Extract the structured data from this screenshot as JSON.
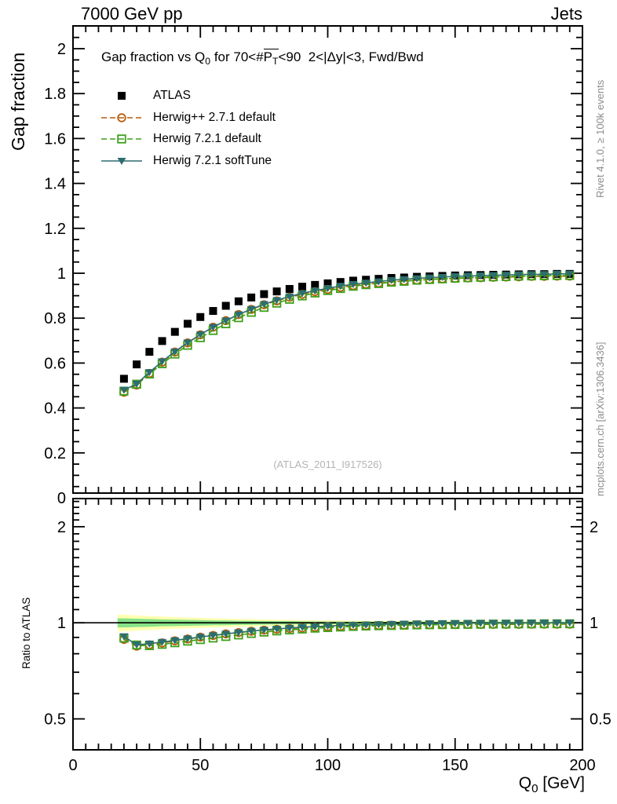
{
  "header": {
    "left": "7000 GeV pp",
    "right": "Jets"
  },
  "side_notes": {
    "top": "Rivet 4.1.0, ≥ 100k events",
    "bottom": "mcplots.cern.ch [arXiv:1306.3436]"
  },
  "watermark": "(ATLAS_2011_I917526)",
  "main_panel": {
    "ylabel": "Gap fraction",
    "title_segments": [
      {
        "t": "Gap fraction vs Q"
      },
      {
        "t": "0",
        "sub": true
      },
      {
        "t": " for 70<#"
      },
      {
        "t": "P",
        "bar": true,
        "sub_t": "T"
      },
      {
        "t": "<90  2<|Δy|<3, Fwd/Bwd"
      }
    ],
    "legend": [
      {
        "label": "ATLAS",
        "marker": "square-filled",
        "color": "#000000",
        "line": "none"
      },
      {
        "label": "Herwig++ 2.7.1 default",
        "marker": "circle-open",
        "color": "#b85c0a",
        "line": "dashed"
      },
      {
        "label": "Herwig 7.2.1 default",
        "marker": "square-open",
        "color": "#3da018",
        "line": "dashed"
      },
      {
        "label": "Herwig 7.2.1 softTune",
        "marker": "triangle-down-filled",
        "color": "#2d6d72",
        "line": "solid"
      }
    ]
  },
  "ratio_panel": {
    "ylabel": "Ratio to ATLAS"
  },
  "xaxis": {
    "label_segments": [
      {
        "t": "Q"
      },
      {
        "t": "0",
        "sub": true
      },
      {
        "t": " [GeV]"
      }
    ]
  },
  "chart_data": {
    "type": "line",
    "title": "Gap fraction vs Q0 for 70<pTbar<90, 2<|dy|<3, Fwd/Bwd",
    "xlabel": "Q0 [GeV]",
    "ylabel_main": "Gap fraction",
    "ylabel_ratio": "Ratio to ATLAS",
    "xlim": [
      0,
      200
    ],
    "ylim_main": [
      0.02,
      2.1
    ],
    "ylim_ratio": [
      0.4,
      2.45
    ],
    "ratio_scale": "log",
    "x": [
      20,
      25,
      30,
      35,
      40,
      45,
      50,
      55,
      60,
      65,
      70,
      75,
      80,
      85,
      90,
      95,
      100,
      105,
      110,
      115,
      120,
      125,
      130,
      135,
      140,
      145,
      150,
      155,
      160,
      165,
      170,
      175,
      180,
      185,
      190,
      195
    ],
    "series": [
      {
        "name": "ATLAS",
        "color": "#000000",
        "marker": "square-filled",
        "line": "none",
        "values": [
          0.53,
          0.594,
          0.65,
          0.698,
          0.739,
          0.775,
          0.805,
          0.832,
          0.855,
          0.875,
          0.892,
          0.907,
          0.919,
          0.93,
          0.94,
          0.948,
          0.955,
          0.961,
          0.967,
          0.971,
          0.975,
          0.979,
          0.981,
          0.984,
          0.986,
          0.988,
          0.99,
          0.991,
          0.992,
          0.993,
          0.994,
          0.995,
          0.996,
          0.996,
          0.997,
          0.997
        ]
      },
      {
        "name": "Herwig++ 2.7.1 default",
        "color": "#b85c0a",
        "marker": "circle-open",
        "line": "dashed",
        "values": [
          0.47,
          0.502,
          0.554,
          0.604,
          0.649,
          0.69,
          0.726,
          0.76,
          0.789,
          0.816,
          0.839,
          0.86,
          0.877,
          0.893,
          0.906,
          0.918,
          0.928,
          0.937,
          0.945,
          0.951,
          0.956,
          0.962,
          0.965,
          0.969,
          0.972,
          0.975,
          0.977,
          0.979,
          0.98,
          0.982,
          0.983,
          0.984,
          0.986,
          0.986,
          0.987,
          0.987
        ],
        "ratio": [
          0.887,
          0.845,
          0.853,
          0.865,
          0.878,
          0.89,
          0.902,
          0.913,
          0.923,
          0.932,
          0.941,
          0.948,
          0.954,
          0.96,
          0.964,
          0.968,
          0.972,
          0.975,
          0.977,
          0.979,
          0.981,
          0.983,
          0.984,
          0.985,
          0.986,
          0.987,
          0.987,
          0.988,
          0.988,
          0.989,
          0.989,
          0.989,
          0.99,
          0.99,
          0.99,
          0.99
        ]
      },
      {
        "name": "Herwig 7.2.1 default",
        "color": "#3da018",
        "marker": "square-open",
        "line": "dashed",
        "values": [
          0.475,
          0.506,
          0.551,
          0.597,
          0.64,
          0.679,
          0.713,
          0.745,
          0.775,
          0.802,
          0.826,
          0.848,
          0.867,
          0.884,
          0.899,
          0.912,
          0.923,
          0.932,
          0.942,
          0.949,
          0.954,
          0.96,
          0.964,
          0.969,
          0.972,
          0.975,
          0.978,
          0.98,
          0.982,
          0.984,
          0.985,
          0.987,
          0.988,
          0.989,
          0.99,
          0.99
        ],
        "ratio": [
          0.896,
          0.852,
          0.848,
          0.856,
          0.866,
          0.876,
          0.886,
          0.896,
          0.906,
          0.916,
          0.926,
          0.935,
          0.943,
          0.95,
          0.956,
          0.962,
          0.966,
          0.97,
          0.974,
          0.977,
          0.979,
          0.981,
          0.983,
          0.985,
          0.986,
          0.987,
          0.988,
          0.989,
          0.99,
          0.991,
          0.991,
          0.992,
          0.992,
          0.993,
          0.993,
          0.993
        ]
      },
      {
        "name": "Herwig 7.2.1 softTune",
        "color": "#2d6d72",
        "marker": "triangle-down-filled",
        "line": "solid",
        "values": [
          0.48,
          0.507,
          0.559,
          0.607,
          0.651,
          0.691,
          0.727,
          0.76,
          0.789,
          0.816,
          0.84,
          0.862,
          0.88,
          0.896,
          0.911,
          0.922,
          0.933,
          0.943,
          0.951,
          0.957,
          0.963,
          0.969,
          0.973,
          0.977,
          0.98,
          0.983,
          0.986,
          0.988,
          0.989,
          0.991,
          0.992,
          0.994,
          0.995,
          0.995,
          0.997,
          0.997
        ],
        "ratio": [
          0.906,
          0.853,
          0.86,
          0.87,
          0.881,
          0.892,
          0.903,
          0.913,
          0.923,
          0.933,
          0.942,
          0.95,
          0.957,
          0.963,
          0.969,
          0.973,
          0.977,
          0.981,
          0.984,
          0.986,
          0.988,
          0.99,
          0.992,
          0.993,
          0.994,
          0.995,
          0.996,
          0.997,
          0.997,
          0.998,
          0.998,
          0.999,
          0.999,
          0.999,
          1.0,
          1.0
        ]
      }
    ],
    "ratio_band": {
      "outer_color": "#ffffb0",
      "inner_color": "#87e287",
      "outer_halfwidth": [
        0.06,
        0.055,
        0.05,
        0.046,
        0.042,
        0.039,
        0.036,
        0.033,
        0.03,
        0.028,
        0.026,
        0.024,
        0.022,
        0.021,
        0.019,
        0.018,
        0.017,
        0.016,
        0.015,
        0.014,
        0.013,
        0.013,
        0.012,
        0.012,
        0.011,
        0.011,
        0.01,
        0.01,
        0.01,
        0.009,
        0.009,
        0.009,
        0.009,
        0.008,
        0.008,
        0.008
      ],
      "inner_halfwidth": [
        0.033,
        0.03,
        0.028,
        0.025,
        0.023,
        0.021,
        0.02,
        0.018,
        0.017,
        0.015,
        0.014,
        0.013,
        0.012,
        0.012,
        0.01,
        0.01,
        0.009,
        0.009,
        0.008,
        0.008,
        0.007,
        0.007,
        0.007,
        0.007,
        0.006,
        0.006,
        0.006,
        0.006,
        0.006,
        0.005,
        0.005,
        0.005,
        0.005,
        0.004,
        0.004,
        0.004
      ]
    },
    "axes": {
      "x_ticks": {
        "values": [
          0,
          50,
          100,
          150,
          200
        ],
        "labels": [
          "0",
          "50",
          "100",
          "150",
          "200"
        ],
        "minor_step": 5
      },
      "y_main_ticks": {
        "values": [
          0,
          0.2,
          0.4,
          0.6,
          0.8,
          1.0,
          1.2,
          1.4,
          1.6,
          1.8,
          2.0
        ],
        "labels": [
          "0",
          "0.2",
          "0.4",
          "0.6",
          "0.8",
          "1",
          "1.2",
          "1.4",
          "1.6",
          "1.8",
          "2"
        ],
        "minor_step": 0.05
      },
      "y_ratio_ticks": {
        "values": [
          0.5,
          1,
          2
        ],
        "labels": [
          "0.5",
          "1",
          "2"
        ],
        "minor_values": [
          0.4,
          0.6,
          0.7,
          0.8,
          0.9,
          1.1,
          1.2,
          1.3,
          1.4,
          1.5,
          1.6,
          1.7,
          1.8,
          1.9,
          2.1,
          2.2,
          2.3,
          2.4
        ]
      }
    }
  }
}
